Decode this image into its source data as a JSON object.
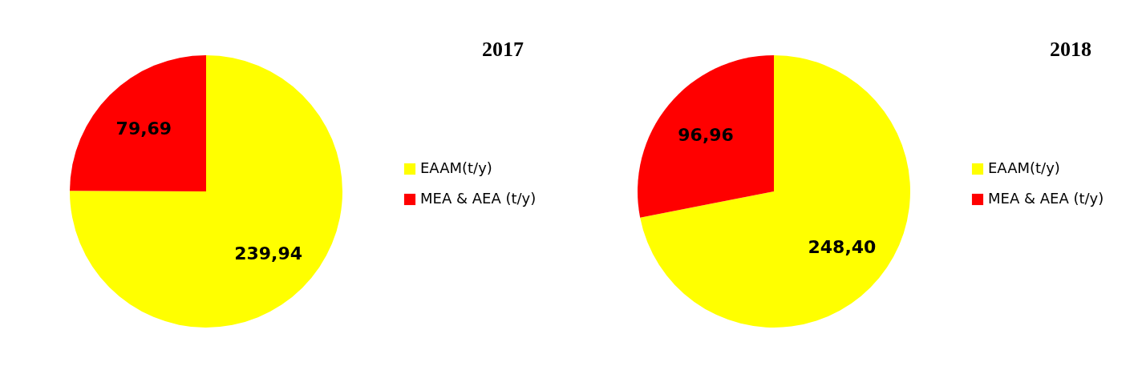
{
  "chart_data": [
    {
      "type": "pie",
      "title": "2017",
      "categories": [
        "EAAM(t/y)",
        "MEA & AEA (t/y)"
      ],
      "values": [
        239.94,
        79.69
      ],
      "colors": [
        "#ffff00",
        "#ff0000"
      ],
      "value_labels": [
        "239,94",
        "79,69"
      ],
      "legend": "right"
    },
    {
      "type": "pie",
      "title": "2018",
      "categories": [
        "EAAM(t/y)",
        "MEA & AEA (t/y)"
      ],
      "values": [
        248.4,
        96.96
      ],
      "colors": [
        "#ffff00",
        "#ff0000"
      ],
      "value_labels": [
        "248,40",
        "96,96"
      ],
      "legend": "right"
    }
  ]
}
